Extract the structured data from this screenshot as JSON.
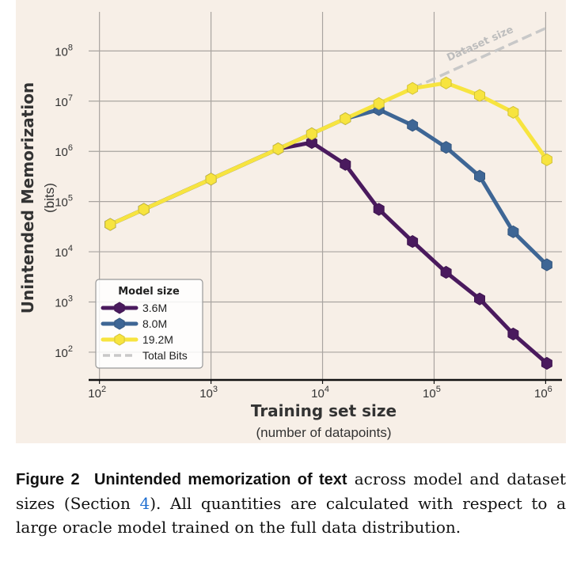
{
  "chart_data": {
    "type": "line",
    "xlabel": "Training set size",
    "xlabel_sub": "(number of datapoints)",
    "ylabel": "Unintended Memorization",
    "ylabel_sub": "(bits)",
    "x_scale": "log",
    "y_scale": "log",
    "xlim": [
      80,
      1400000
    ],
    "ylim": [
      28,
      600000000
    ],
    "x_ticks": [
      {
        "value": 100,
        "base": "10",
        "exp": "2"
      },
      {
        "value": 1000,
        "base": "10",
        "exp": "3"
      },
      {
        "value": 10000,
        "base": "10",
        "exp": "4"
      },
      {
        "value": 100000,
        "base": "10",
        "exp": "5"
      },
      {
        "value": 1000000,
        "base": "10",
        "exp": "6"
      }
    ],
    "y_ticks": [
      {
        "value": 100,
        "base": "10",
        "exp": "2"
      },
      {
        "value": 1000,
        "base": "10",
        "exp": "3"
      },
      {
        "value": 10000,
        "base": "10",
        "exp": "4"
      },
      {
        "value": 100000,
        "base": "10",
        "exp": "5"
      },
      {
        "value": 1000000,
        "base": "10",
        "exp": "6"
      },
      {
        "value": 10000000,
        "base": "10",
        "exp": "7"
      },
      {
        "value": 100000000,
        "base": "10",
        "exp": "8"
      }
    ],
    "grid": true,
    "legend": {
      "title": "Model size",
      "position": "bottom-left"
    },
    "series": [
      {
        "name": "3.6M",
        "color": "#4a1a5e",
        "x": [
          125,
          250,
          1000,
          4000,
          8000,
          16000,
          32000,
          64000,
          128000,
          256000,
          512000,
          1024000
        ],
        "y": [
          35000,
          70000,
          280000,
          1120000,
          1500000,
          550000,
          70000,
          16000,
          3900,
          1150,
          230,
          60
        ]
      },
      {
        "name": "8.0M",
        "color": "#3e6695",
        "x": [
          125,
          250,
          1000,
          4000,
          8000,
          16000,
          32000,
          64000,
          128000,
          256000,
          512000,
          1024000
        ],
        "y": [
          35000,
          70000,
          280000,
          1120000,
          2240000,
          4480000,
          6800000,
          3300000,
          1200000,
          320000,
          25000,
          5500
        ]
      },
      {
        "name": "19.2M",
        "color": "#f7e43f",
        "x": [
          125,
          250,
          1000,
          4000,
          8000,
          16000,
          32000,
          64000,
          128000,
          256000,
          512000,
          1024000
        ],
        "y": [
          35000,
          70000,
          280000,
          1120000,
          2240000,
          4480000,
          8960000,
          17900000,
          23000000,
          13000000,
          6000000,
          680000
        ]
      }
    ],
    "reference_line": {
      "name": "Total Bits",
      "label": "Dataset size",
      "color": "#c8c8c8",
      "x": [
        64000,
        1024000
      ],
      "y": [
        17900000,
        290000000
      ]
    }
  },
  "caption": {
    "figure_label": "Figure 2",
    "bold_text": "Unintended memorization of text",
    "text_before_ref": " across model and dataset sizes (Section ",
    "ref": "4",
    "text_after_ref": "). All quantities are calculated with respect to a large oracle model trained on the full data distribution."
  }
}
